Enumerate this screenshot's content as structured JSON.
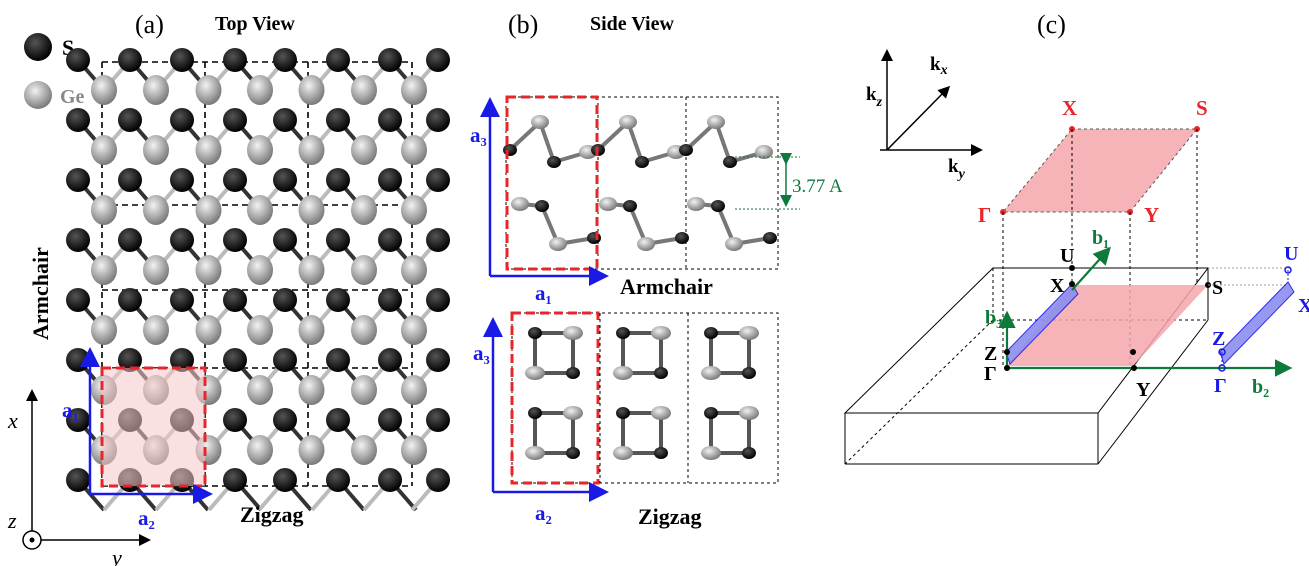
{
  "legend": {
    "s_label": "S",
    "ge_label": "Ge",
    "s_color": "#000000",
    "ge_color": "#9a9a9a"
  },
  "panel_a": {
    "tag": "(a)",
    "title": "Top View",
    "armchair_label": "Armchair",
    "zigzag_label": "Zigzag",
    "a1_label": "a₁",
    "a2_label": "a₂",
    "axis_x": "x",
    "axis_y": "y",
    "axis_z": "z"
  },
  "panel_b": {
    "tag": "(b)",
    "title": "Side View",
    "a3_label": "a₃",
    "a1_label": "a₁",
    "a2_label": "a₂",
    "armchair_label": "Armchair",
    "zigzag_label": "Zigzag",
    "spacing_label": "3.77 A"
  },
  "panel_c": {
    "tag": "(c)",
    "kz_label": "k",
    "kz_sub": "z",
    "kx_label": "k",
    "kx_sub": "x",
    "ky_label": "k",
    "ky_sub": "y",
    "points_top": {
      "X": "X",
      "S": "S",
      "Gamma": "Γ",
      "Y": "Y"
    },
    "points_bz": {
      "U": "U",
      "X": "X",
      "Z": "Z",
      "Gamma": "Γ",
      "Y": "Y",
      "S": "S"
    },
    "points_side": {
      "U": "U",
      "X": "X",
      "Z": "Z",
      "Gamma": "Γ"
    },
    "b1_label": "b₁",
    "b2_label": "b₂",
    "b3_label": "b₃"
  },
  "colors": {
    "red_label": "#e8262a",
    "blue": "#1a1ae6",
    "green": "#0d7a3a",
    "pink_fill": "#f6a7ab",
    "blue_fill": "#8c8ff0",
    "red_dash": "#e8262a"
  }
}
